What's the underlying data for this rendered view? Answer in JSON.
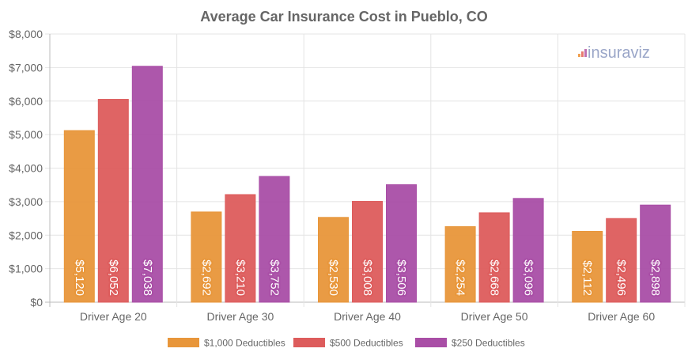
{
  "chart_data": {
    "type": "bar",
    "title": "Average Car Insurance Cost in Pueblo, CO",
    "xlabel": "",
    "ylabel": "",
    "ylim": [
      0,
      8000
    ],
    "yticks": [
      "$0",
      "$1,000",
      "$2,000",
      "$3,000",
      "$4,000",
      "$5,000",
      "$6,000",
      "$7,000",
      "$8,000"
    ],
    "grid": true,
    "legend_position": "bottom",
    "categories": [
      "Driver Age 20",
      "Driver Age 30",
      "Driver Age 40",
      "Driver Age 50",
      "Driver Age 60"
    ],
    "series": [
      {
        "name": "$1,000 Deductibles",
        "color": "#e8963a",
        "values": [
          5120,
          2692,
          2530,
          2254,
          2112
        ],
        "labels": [
          "$5,120",
          "$2,692",
          "$2,530",
          "$2,254",
          "$2,112"
        ]
      },
      {
        "name": "$500 Deductibles",
        "color": "#dd5c5c",
        "values": [
          6052,
          3210,
          3008,
          2668,
          2496
        ],
        "labels": [
          "$6,052",
          "$3,210",
          "$3,008",
          "$2,668",
          "$2,496"
        ]
      },
      {
        "name": "$250 Deductibles",
        "color": "#a94ea6",
        "values": [
          7038,
          3752,
          3506,
          3096,
          2898
        ],
        "labels": [
          "$7,038",
          "$3,752",
          "$3,506",
          "$3,096",
          "$2,898"
        ]
      }
    ]
  },
  "watermark": "insuraviz"
}
